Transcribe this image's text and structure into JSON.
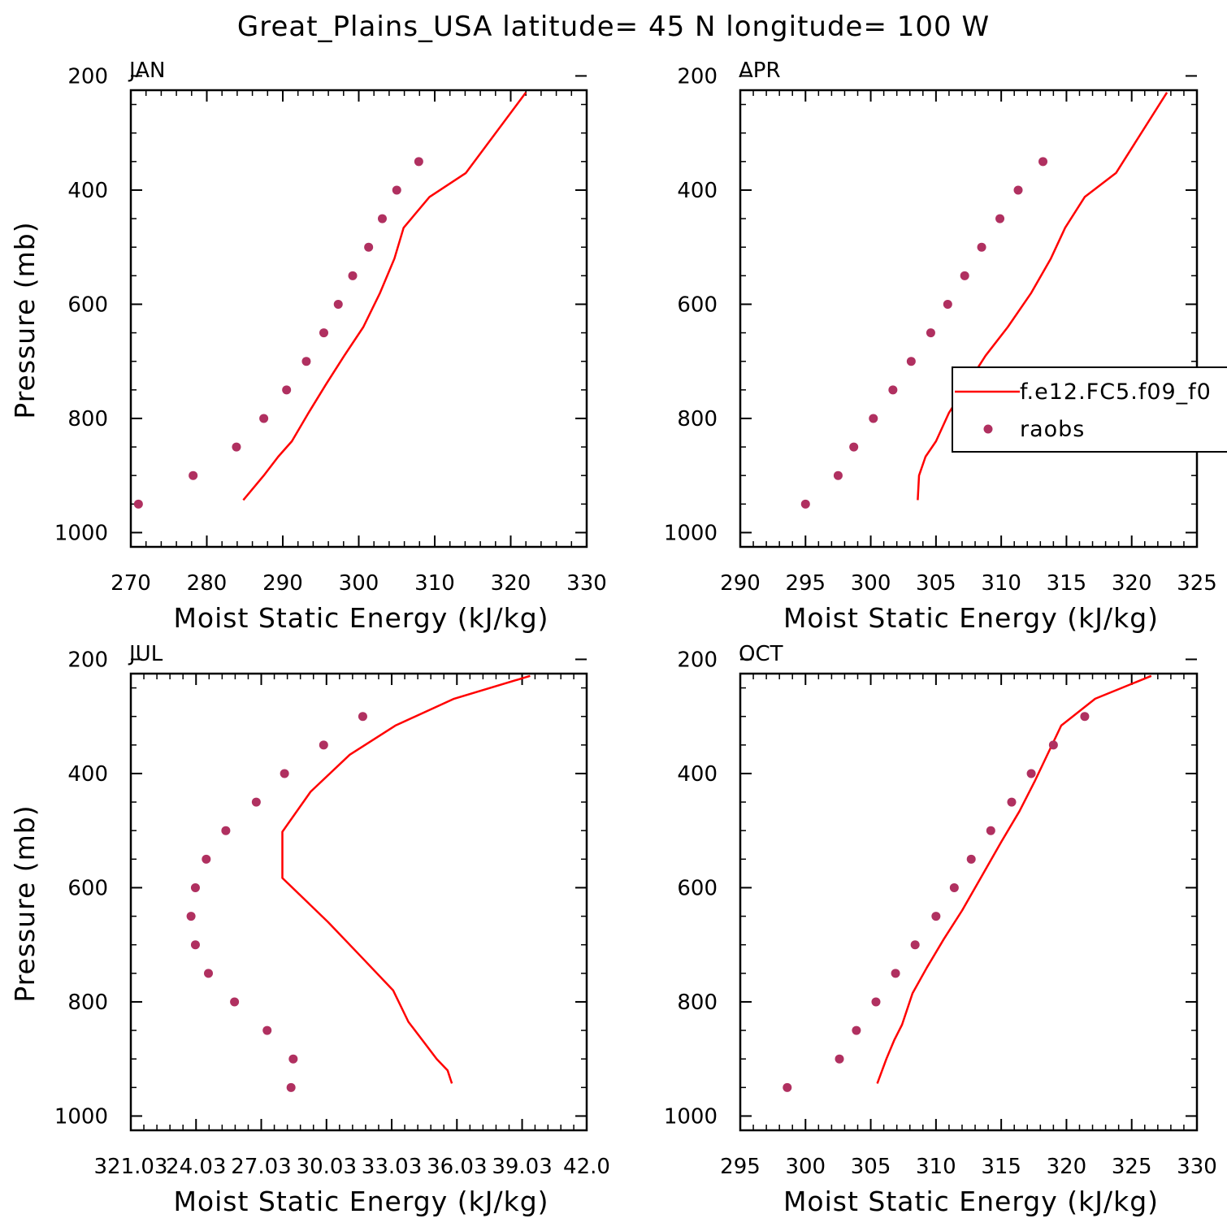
{
  "title": "Great_Plains_USA  latitude= 45 N longitude= 100 W",
  "colors": {
    "model": "#ff0000",
    "obs": "#b03060",
    "axes": "#000000"
  },
  "legend": {
    "panel": 1,
    "entries": [
      {
        "label": "f.e12.FC5.f09_f0",
        "kind": "line"
      },
      {
        "label": "raobs",
        "kind": "marker"
      }
    ]
  },
  "chart_data": [
    {
      "type": "line",
      "panel_label": "JAN",
      "xlabel": "Moist Static Energy (kJ/kg)",
      "ylabel": "Pressure (mb)",
      "xlim": [
        270,
        330
      ],
      "ylim": [
        1000,
        200
      ],
      "xticks": [
        270,
        280,
        290,
        300,
        310,
        320,
        330
      ],
      "xtick_labels": [
        "270",
        "280",
        "290",
        "300",
        "310",
        "320",
        "330"
      ],
      "yticks": [
        200,
        400,
        600,
        800,
        1000
      ],
      "ytick_labels": [
        "200",
        "400",
        "600",
        "800",
        "1000"
      ],
      "series": [
        {
          "name": "f.e12.FC5.f09_f0",
          "kind": "line",
          "x": [
            284.8,
            287.5,
            289.4,
            291.2,
            293.4,
            295.7,
            298.1,
            300.6,
            302.8,
            304.7,
            305.9,
            309.3,
            314.1,
            322.0
          ],
          "y": [
            943,
            900,
            867,
            840,
            790,
            740,
            690,
            640,
            580,
            520,
            466,
            412,
            370,
            229
          ]
        },
        {
          "name": "raobs",
          "kind": "scatter",
          "x": [
            271.0,
            278.2,
            283.9,
            287.5,
            290.5,
            293.1,
            295.4,
            297.3,
            299.2,
            301.3,
            303.1,
            305.0,
            307.9
          ],
          "y": [
            950,
            900,
            850,
            800,
            750,
            700,
            650,
            600,
            550,
            500,
            450,
            400,
            350
          ]
        }
      ]
    },
    {
      "type": "line",
      "panel_label": "APR",
      "xlabel": "Moist Static Energy (kJ/kg)",
      "ylabel": "",
      "xlim": [
        290,
        325
      ],
      "ylim": [
        1000,
        200
      ],
      "xticks": [
        290,
        295,
        300,
        305,
        310,
        315,
        320,
        325
      ],
      "xtick_labels": [
        "290",
        "295",
        "300",
        "305",
        "310",
        "315",
        "320",
        "325"
      ],
      "yticks": [
        200,
        400,
        600,
        800,
        1000
      ],
      "ytick_labels": [
        "200",
        "400",
        "600",
        "800",
        "1000"
      ],
      "series": [
        {
          "name": "f.e12.FC5.f09_f0",
          "kind": "line",
          "x": [
            303.6,
            303.7,
            304.2,
            305.0,
            306.0,
            307.4,
            308.8,
            310.5,
            312.3,
            313.8,
            314.9,
            316.4,
            318.8,
            322.7
          ],
          "y": [
            943,
            900,
            867,
            840,
            790,
            740,
            690,
            640,
            580,
            520,
            466,
            412,
            370,
            229
          ]
        },
        {
          "name": "raobs",
          "kind": "scatter",
          "x": [
            295.0,
            297.5,
            298.7,
            300.2,
            301.7,
            303.1,
            304.6,
            305.9,
            307.2,
            308.5,
            309.9,
            311.3,
            313.2
          ],
          "y": [
            950,
            900,
            850,
            800,
            750,
            700,
            650,
            600,
            550,
            500,
            450,
            400,
            350
          ]
        }
      ]
    },
    {
      "type": "line",
      "panel_label": "JUL",
      "xlabel": "Moist Static Energy (kJ/kg)",
      "ylabel": "Pressure (mb)",
      "xlim": [
        321.03,
        342.0
      ],
      "ylim": [
        1000,
        200
      ],
      "xticks": [
        321.03,
        324.03,
        327.03,
        330.03,
        333.03,
        336.03,
        339.03,
        342.0
      ],
      "xtick_labels": [
        "321.03",
        "24.03",
        "27.03",
        "30.03",
        "33.03",
        "36.03",
        "39.03",
        "42.0"
      ],
      "yticks": [
        200,
        400,
        600,
        800,
        1000
      ],
      "ytick_labels": [
        "200",
        "400",
        "600",
        "800",
        "1000"
      ],
      "series": [
        {
          "name": "f.e12.FC5.f09_f0",
          "kind": "line",
          "x": [
            335.8,
            335.6,
            335.1,
            334.5,
            333.8,
            333.1,
            331.6,
            330.1,
            328.0,
            328.0,
            329.3,
            331.1,
            333.2,
            335.9,
            339.4
          ],
          "y": [
            943,
            920,
            900,
            870,
            835,
            780,
            720,
            660,
            583,
            502,
            432,
            367,
            316,
            269,
            229
          ]
        },
        {
          "name": "raobs",
          "kind": "scatter",
          "x": [
            328.4,
            328.5,
            327.3,
            325.8,
            324.6,
            324.0,
            323.8,
            324.0,
            324.5,
            325.4,
            326.8,
            328.1,
            329.9,
            331.7
          ],
          "y": [
            950,
            900,
            850,
            800,
            750,
            700,
            650,
            600,
            550,
            500,
            450,
            400,
            350,
            300
          ]
        }
      ]
    },
    {
      "type": "line",
      "panel_label": "OCT",
      "xlabel": "Moist Static Energy (kJ/kg)",
      "ylabel": "",
      "xlim": [
        295,
        330
      ],
      "ylim": [
        1000,
        200
      ],
      "xticks": [
        295,
        300,
        305,
        310,
        315,
        320,
        325,
        330
      ],
      "xtick_labels": [
        "295",
        "300",
        "305",
        "310",
        "315",
        "320",
        "325",
        "330"
      ],
      "yticks": [
        200,
        400,
        600,
        800,
        1000
      ],
      "ytick_labels": [
        "200",
        "400",
        "600",
        "800",
        "1000"
      ],
      "series": [
        {
          "name": "f.e12.FC5.f09_f0",
          "kind": "line",
          "x": [
            305.5,
            306.2,
            306.8,
            307.4,
            308.2,
            309.3,
            310.6,
            312.0,
            313.5,
            315.0,
            316.4,
            317.6,
            319.6,
            322.2,
            326.5
          ],
          "y": [
            943,
            900,
            867,
            840,
            785,
            740,
            690,
            640,
            580,
            520,
            466,
            412,
            316,
            269,
            229
          ]
        },
        {
          "name": "raobs",
          "kind": "scatter",
          "x": [
            298.6,
            302.6,
            303.9,
            305.4,
            306.9,
            308.4,
            310.0,
            311.4,
            312.7,
            314.2,
            315.8,
            317.3,
            319.0,
            321.4
          ],
          "y": [
            950,
            900,
            850,
            800,
            750,
            700,
            650,
            600,
            550,
            500,
            450,
            400,
            350,
            300
          ]
        }
      ]
    }
  ]
}
